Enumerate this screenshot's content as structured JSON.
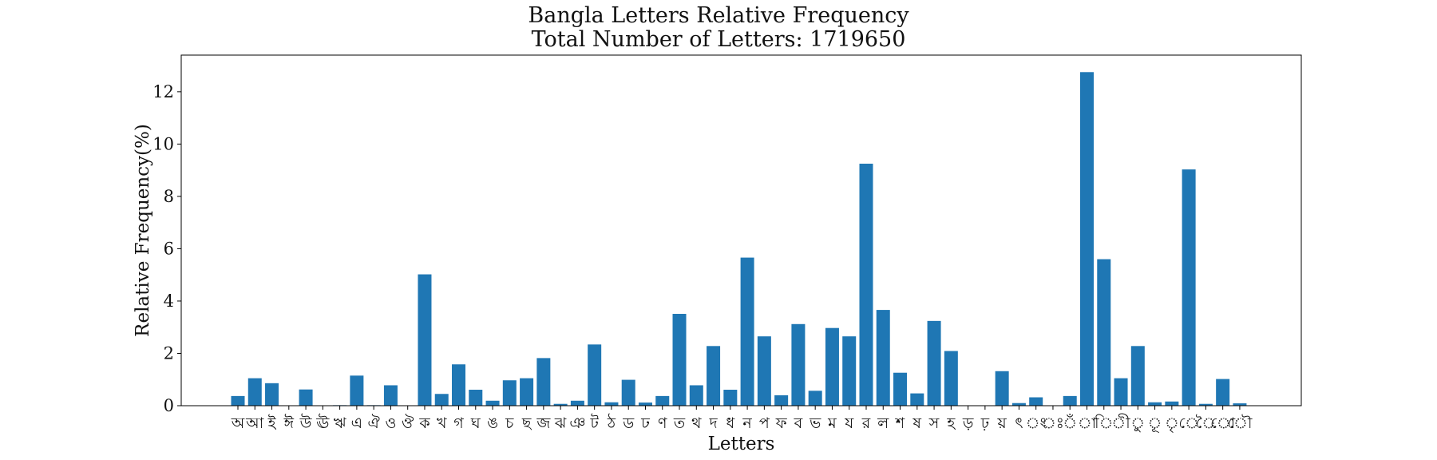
{
  "chart_data": {
    "type": "bar",
    "title": "Bangla Letters Relative Frequency",
    "subtitle": "Total Number of Letters: 1719650",
    "xlabel": "Letters",
    "ylabel": "Relative Frequency(%)",
    "ylim": [
      0,
      13.4
    ],
    "yticks": [
      0,
      2,
      4,
      6,
      8,
      10,
      12
    ],
    "grid": false,
    "bar_color": "#1f77b4",
    "categories": [
      "অ",
      "আ",
      "ই",
      "ঈ",
      "উ",
      "ঊ",
      "ঋ",
      "এ",
      "ঐ",
      "ও",
      "ঔ",
      "ক",
      "খ",
      "গ",
      "ঘ",
      "ঙ",
      "চ",
      "ছ",
      "জ",
      "ঝ",
      "ঞ",
      "ট",
      "ঠ",
      "ড",
      "ঢ",
      "ণ",
      "ত",
      "থ",
      "দ",
      "ধ",
      "ন",
      "প",
      "ফ",
      "ব",
      "ভ",
      "ম",
      "য",
      "র",
      "ল",
      "শ",
      "ষ",
      "স",
      "হ",
      "ড়",
      "ঢ়",
      "য়",
      "ৎ",
      "ং",
      "ঃ",
      "ঁ",
      "া",
      "ি",
      "ী",
      "ু",
      "ূ",
      "ৃ",
      "ে",
      "ৈ",
      "ো",
      "ৌ"
    ],
    "values": [
      0.37,
      1.05,
      0.86,
      0.01,
      0.62,
      0.01,
      0.02,
      1.15,
      0.02,
      0.78,
      0.01,
      5.02,
      0.45,
      1.58,
      0.61,
      0.19,
      0.97,
      1.05,
      1.82,
      0.07,
      0.19,
      2.34,
      0.13,
      0.99,
      0.12,
      0.37,
      3.51,
      0.78,
      2.28,
      0.61,
      5.66,
      2.65,
      0.4,
      3.12,
      0.57,
      2.97,
      2.65,
      9.25,
      3.66,
      1.26,
      0.47,
      3.24,
      2.09,
      0.0,
      0.0,
      1.32,
      0.1,
      0.32,
      0.01,
      0.37,
      12.75,
      5.6,
      1.05,
      2.28,
      0.13,
      0.16,
      9.03,
      0.07,
      1.02,
      0.09
    ]
  }
}
